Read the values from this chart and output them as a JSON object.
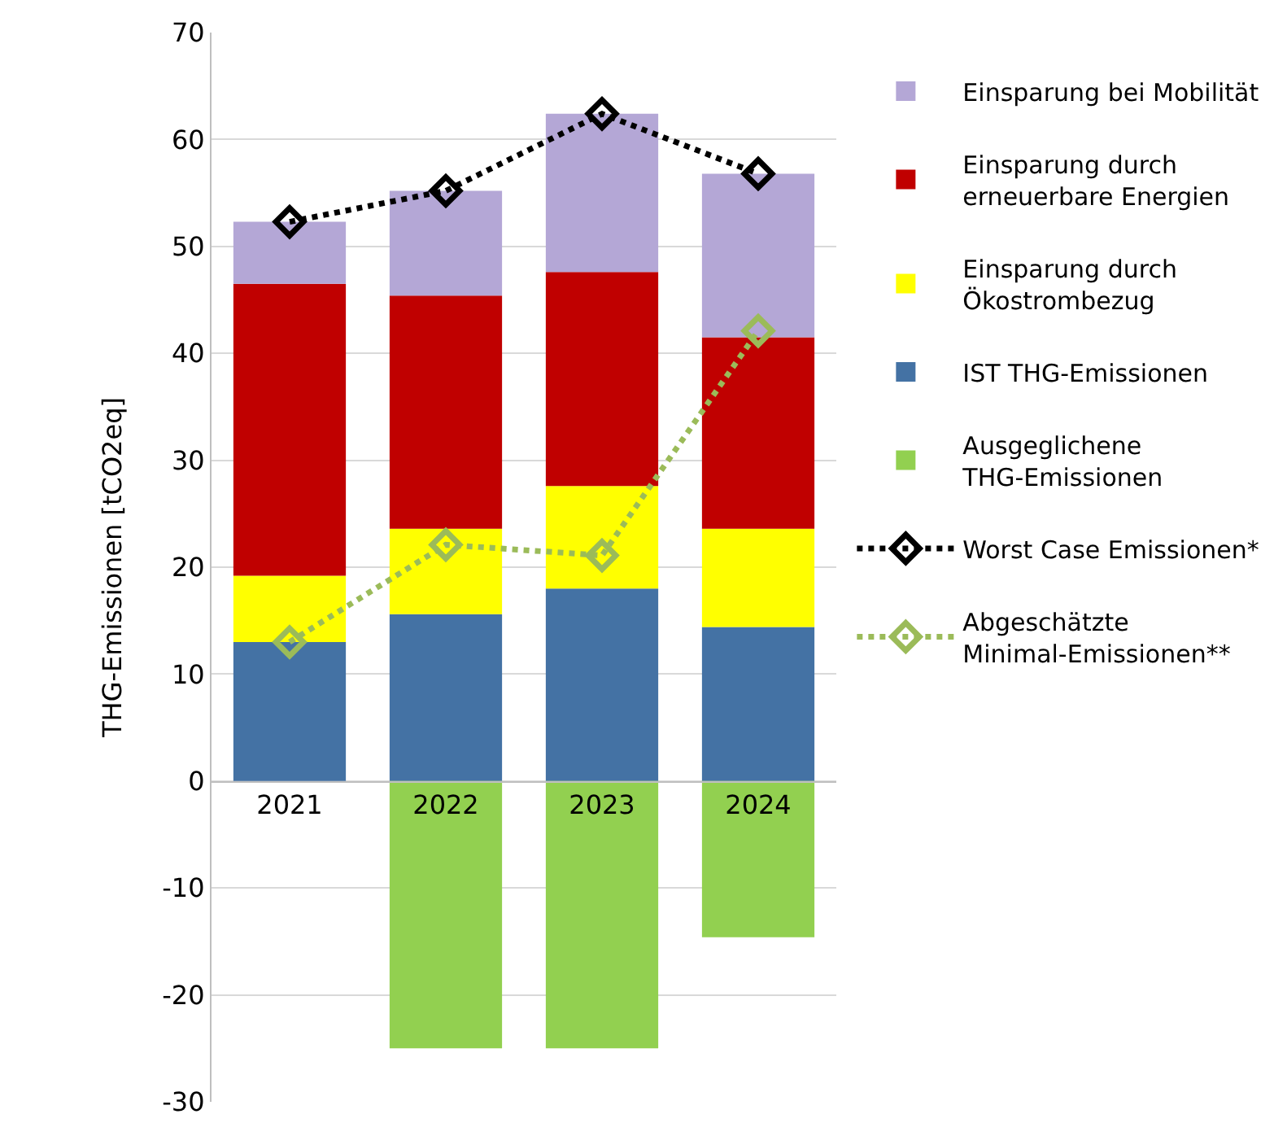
{
  "chart_data": {
    "type": "bar",
    "stacked": true,
    "ylabel": "THG-Emissionen [tCO2eq]",
    "categories": [
      "2021",
      "2022",
      "2023",
      "2024"
    ],
    "series": [
      {
        "name": "IST THG-Emissionen",
        "color": "#4472a4",
        "values": [
          13.0,
          15.6,
          18.0,
          14.4
        ]
      },
      {
        "name": "Einsparung durch Ökostrombezug",
        "color": "#ffff00",
        "values": [
          6.2,
          8.0,
          9.6,
          9.2
        ]
      },
      {
        "name": "Einsparung durch erneuerbare Energien",
        "color": "#c00000",
        "values": [
          27.3,
          21.8,
          20.0,
          17.9
        ]
      },
      {
        "name": "Einsparung bei Mobilität",
        "color": "#b4a7d6",
        "values": [
          5.8,
          9.8,
          14.8,
          15.3
        ]
      },
      {
        "name": "Ausgeglichene THG-Emissionen",
        "color": "#92d050",
        "values": [
          null,
          -25.0,
          -25.0,
          -14.6
        ]
      },
      {
        "name": "Worst Case Emissionen*",
        "type": "line",
        "color": "#000000",
        "marker": "diamond",
        "line_style": "dotted",
        "values": [
          52.3,
          55.2,
          62.4,
          56.8
        ]
      },
      {
        "name": "Abgeschätzte Minimal-Emissionen**",
        "type": "line",
        "color": "#9bbb59",
        "marker": "diamond",
        "line_style": "dotted",
        "values": [
          13.0,
          22.1,
          21.1,
          42.1
        ]
      }
    ],
    "ylim": [
      -30,
      70
    ],
    "yticks": [
      -30,
      -20,
      -10,
      0,
      10,
      20,
      30,
      40,
      50,
      60,
      70
    ],
    "grid": "y",
    "legend": "right"
  }
}
